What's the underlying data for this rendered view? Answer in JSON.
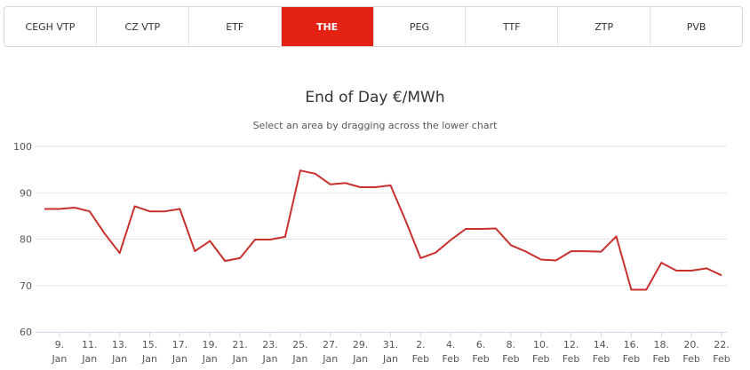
{
  "tabs": [
    {
      "label": "CEGH VTP",
      "active": false
    },
    {
      "label": "CZ VTP",
      "active": false
    },
    {
      "label": "ETF",
      "active": false
    },
    {
      "label": "THE",
      "active": true
    },
    {
      "label": "PEG",
      "active": false
    },
    {
      "label": "TTF",
      "active": false
    },
    {
      "label": "ZTP",
      "active": false
    },
    {
      "label": "PVB",
      "active": false
    }
  ],
  "colors": {
    "accent": "#e32213",
    "line": "#c9302c",
    "grid": "#e6e6e6"
  },
  "chart_data": {
    "type": "line",
    "title": "End of Day €/MWh",
    "subtitle": "Select an area by dragging across the lower chart",
    "xlabel": "",
    "ylabel": "",
    "ylim": [
      60,
      100
    ],
    "yticks": [
      60,
      70,
      80,
      90,
      100
    ],
    "grid": true,
    "x_ticks": [
      {
        "day": "9.",
        "month": "Jan",
        "date": "2023-01-09"
      },
      {
        "day": "11.",
        "month": "Jan",
        "date": "2023-01-11"
      },
      {
        "day": "13.",
        "month": "Jan",
        "date": "2023-01-13"
      },
      {
        "day": "15.",
        "month": "Jan",
        "date": "2023-01-15"
      },
      {
        "day": "17.",
        "month": "Jan",
        "date": "2023-01-17"
      },
      {
        "day": "19.",
        "month": "Jan",
        "date": "2023-01-19"
      },
      {
        "day": "21.",
        "month": "Jan",
        "date": "2023-01-21"
      },
      {
        "day": "23.",
        "month": "Jan",
        "date": "2023-01-23"
      },
      {
        "day": "25.",
        "month": "Jan",
        "date": "2023-01-25"
      },
      {
        "day": "27.",
        "month": "Jan",
        "date": "2023-01-27"
      },
      {
        "day": "29.",
        "month": "Jan",
        "date": "2023-01-29"
      },
      {
        "day": "31.",
        "month": "Jan",
        "date": "2023-01-31"
      },
      {
        "day": "2.",
        "month": "Feb",
        "date": "2023-02-02"
      },
      {
        "day": "4.",
        "month": "Feb",
        "date": "2023-02-04"
      },
      {
        "day": "6.",
        "month": "Feb",
        "date": "2023-02-06"
      },
      {
        "day": "8.",
        "month": "Feb",
        "date": "2023-02-08"
      },
      {
        "day": "10.",
        "month": "Feb",
        "date": "2023-02-10"
      },
      {
        "day": "12.",
        "month": "Feb",
        "date": "2023-02-12"
      },
      {
        "day": "14.",
        "month": "Feb",
        "date": "2023-02-14"
      },
      {
        "day": "16.",
        "month": "Feb",
        "date": "2023-02-16"
      },
      {
        "day": "18.",
        "month": "Feb",
        "date": "2023-02-18"
      },
      {
        "day": "20.",
        "month": "Feb",
        "date": "2023-02-20"
      },
      {
        "day": "22.",
        "month": "Feb",
        "date": "2023-02-22"
      }
    ],
    "x_range": [
      "2023-01-08",
      "2023-02-22"
    ],
    "series": [
      {
        "points": [
          {
            "x": "2023-01-08",
            "y": 86.5
          },
          {
            "x": "2023-01-09",
            "y": 86.5
          },
          {
            "x": "2023-01-10",
            "y": 86.8
          },
          {
            "x": "2023-01-11",
            "y": 86.0
          },
          {
            "x": "2023-01-12",
            "y": 81.2
          },
          {
            "x": "2023-01-13",
            "y": 77.0
          },
          {
            "x": "2023-01-14",
            "y": 87.1
          },
          {
            "x": "2023-01-15",
            "y": 86.0
          },
          {
            "x": "2023-01-16",
            "y": 86.0
          },
          {
            "x": "2023-01-17",
            "y": 86.5
          },
          {
            "x": "2023-01-18",
            "y": 77.4
          },
          {
            "x": "2023-01-19",
            "y": 79.6
          },
          {
            "x": "2023-01-20",
            "y": 75.3
          },
          {
            "x": "2023-01-21",
            "y": 75.9
          },
          {
            "x": "2023-01-22",
            "y": 79.9
          },
          {
            "x": "2023-01-23",
            "y": 79.9
          },
          {
            "x": "2023-01-24",
            "y": 80.5
          },
          {
            "x": "2023-01-25",
            "y": 94.8
          },
          {
            "x": "2023-01-26",
            "y": 94.1
          },
          {
            "x": "2023-01-27",
            "y": 91.8
          },
          {
            "x": "2023-01-28",
            "y": 92.1
          },
          {
            "x": "2023-01-29",
            "y": 91.2
          },
          {
            "x": "2023-01-30",
            "y": 91.2
          },
          {
            "x": "2023-01-31",
            "y": 91.6
          },
          {
            "x": "2023-02-01",
            "y": 84.0
          },
          {
            "x": "2023-02-02",
            "y": 75.9
          },
          {
            "x": "2023-02-03",
            "y": 77.1
          },
          {
            "x": "2023-02-04",
            "y": 79.8
          },
          {
            "x": "2023-02-05",
            "y": 82.2
          },
          {
            "x": "2023-02-06",
            "y": 82.2
          },
          {
            "x": "2023-02-07",
            "y": 82.3
          },
          {
            "x": "2023-02-08",
            "y": 78.7
          },
          {
            "x": "2023-02-09",
            "y": 77.3
          },
          {
            "x": "2023-02-10",
            "y": 75.6
          },
          {
            "x": "2023-02-11",
            "y": 75.4
          },
          {
            "x": "2023-02-12",
            "y": 77.4
          },
          {
            "x": "2023-02-13",
            "y": 77.4
          },
          {
            "x": "2023-02-14",
            "y": 77.3
          },
          {
            "x": "2023-02-15",
            "y": 80.6
          },
          {
            "x": "2023-02-16",
            "y": 69.1
          },
          {
            "x": "2023-02-17",
            "y": 69.1
          },
          {
            "x": "2023-02-18",
            "y": 74.9
          },
          {
            "x": "2023-02-19",
            "y": 73.2
          },
          {
            "x": "2023-02-20",
            "y": 73.2
          },
          {
            "x": "2023-02-21",
            "y": 73.7
          },
          {
            "x": "2023-02-22",
            "y": 72.2
          }
        ]
      }
    ]
  }
}
